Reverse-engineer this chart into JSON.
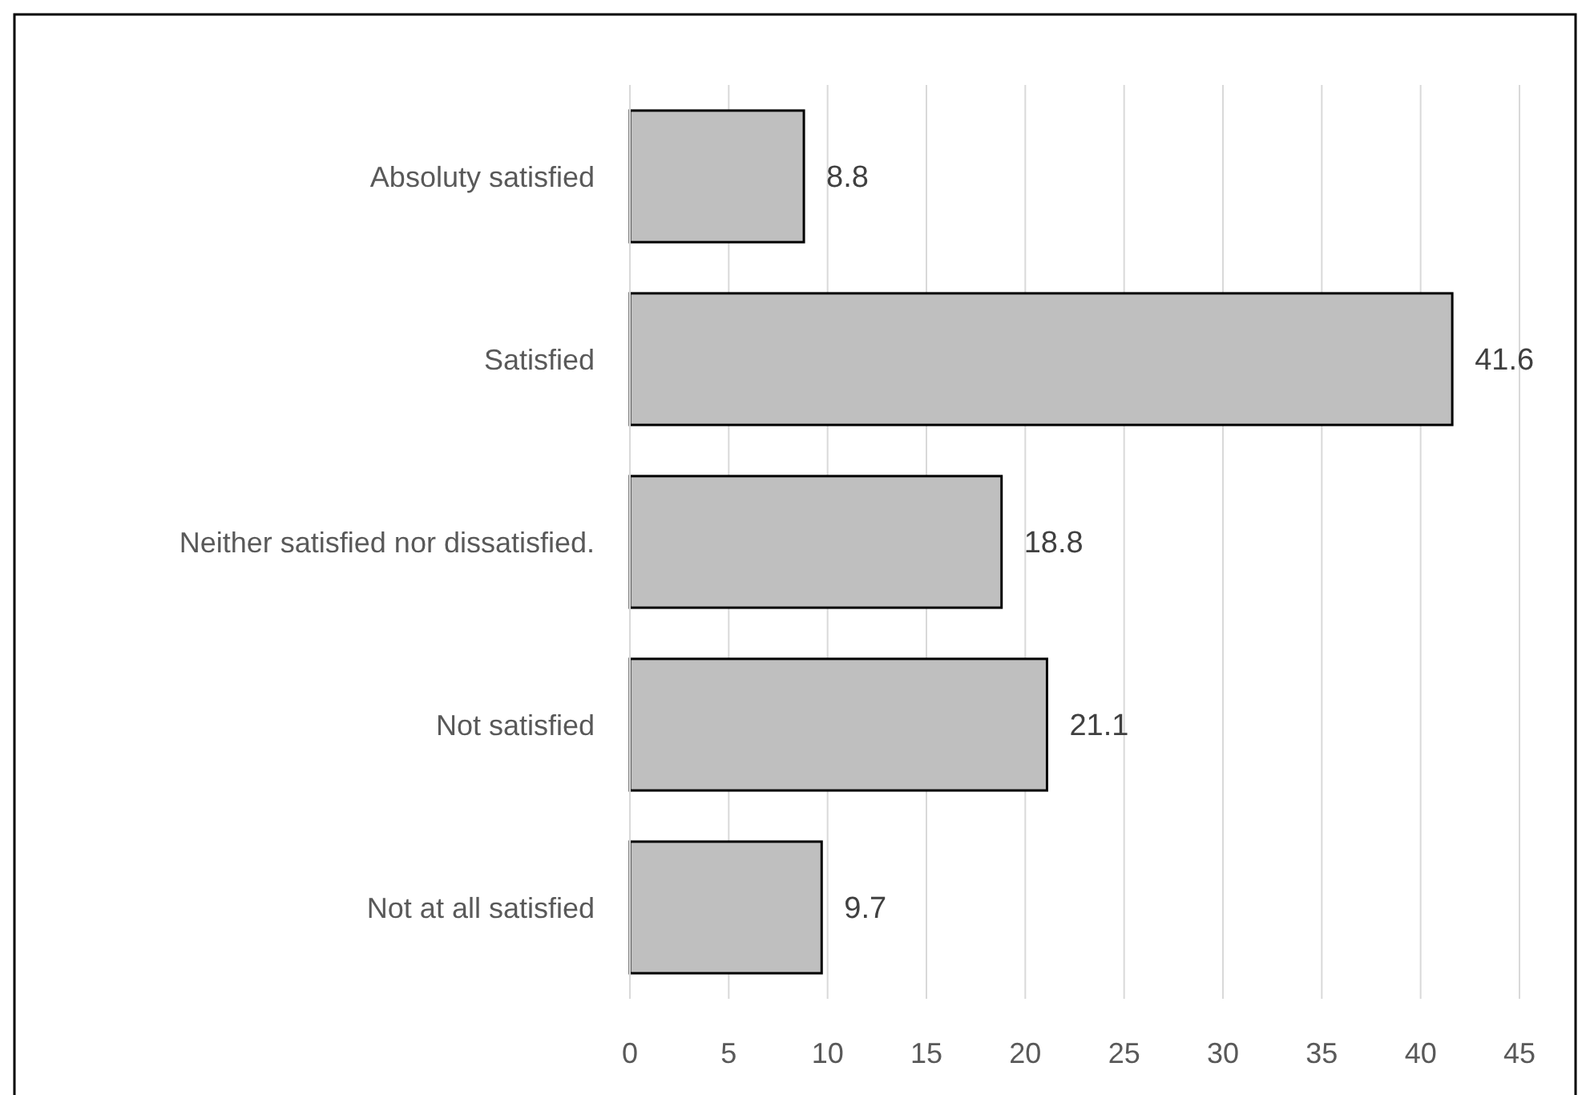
{
  "chart_data": {
    "type": "bar",
    "orientation": "horizontal",
    "categories": [
      "Absoluty satisfied",
      "Satisfied",
      "Neither satisfied nor dissatisfied.",
      "Not satisfied",
      "Not at all satisfied"
    ],
    "values": [
      8.8,
      41.6,
      18.8,
      21.1,
      9.7
    ],
    "color": "#bfbfbf",
    "xlim": [
      0,
      45
    ],
    "xticks": [
      0,
      5,
      10,
      15,
      20,
      25,
      30,
      35,
      40,
      45
    ],
    "grid": "x",
    "data_labels": true
  }
}
